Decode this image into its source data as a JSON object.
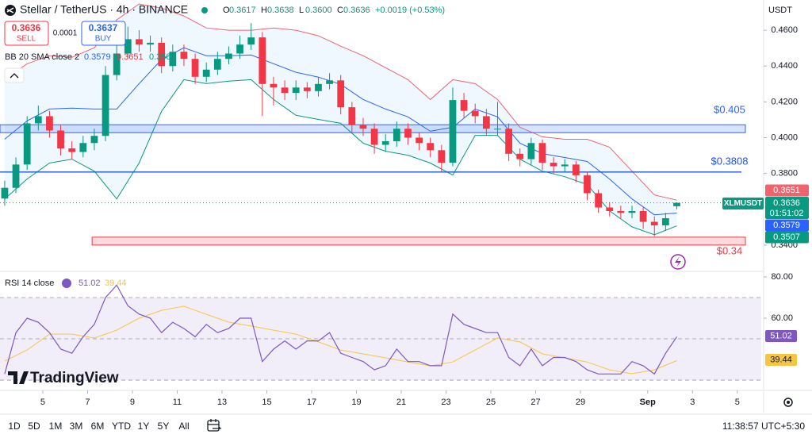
{
  "header": {
    "title": "Stellar / TetherUS · 4h · BINANCE",
    "ohlc": [
      {
        "key": "O",
        "value": "0.3617"
      },
      {
        "key": "H",
        "value": "0.3638"
      },
      {
        "key": "L",
        "value": "0.3600"
      },
      {
        "key": "C",
        "value": "0.3636"
      }
    ],
    "change": "+0.0019 (+0.53%)",
    "sell": {
      "price": "0.3636",
      "label": "SELL"
    },
    "spread": "0.0001",
    "buy": {
      "price": "0.3637",
      "label": "BUY"
    },
    "currency": "USDT"
  },
  "chart_data": {
    "type": "candlestick",
    "symbol_badge": "XLMUSDT",
    "countdown": "01:51:02",
    "up_color": "#089981",
    "down_color": "#f23645",
    "xlim": [
      3.09,
      37.07
    ],
    "xticks": [
      5,
      7,
      9,
      11,
      13,
      15,
      17,
      19,
      21,
      23,
      25,
      27,
      29,
      {
        "value": 32,
        "label": "Sep"
      },
      {
        "value": 34,
        "label": "3"
      },
      {
        "value": 36,
        "label": "5"
      }
    ],
    "ylim": [
      0.3262,
      0.4769
    ],
    "yticks": [
      {
        "value": 0.46,
        "label": "0.4600"
      },
      {
        "value": 0.44,
        "label": "0.4400"
      },
      {
        "value": 0.42,
        "label": "0.4200"
      },
      {
        "value": 0.4,
        "label": "0.4000"
      },
      {
        "value": 0.38,
        "label": "0.3800"
      },
      {
        "value": 0.34,
        "label": "0.3400"
      }
    ],
    "grid": false,
    "x": [
      3.3,
      3.8,
      4.3,
      4.8,
      5.3,
      5.8,
      6.3,
      6.8,
      7.3,
      7.8,
      8.3,
      8.8,
      9.3,
      9.8,
      10.3,
      10.8,
      11.3,
      11.8,
      12.3,
      12.8,
      13.3,
      13.8,
      14.3,
      14.8,
      15.3,
      15.8,
      16.3,
      16.8,
      17.3,
      17.8,
      18.3,
      18.8,
      19.3,
      19.8,
      20.3,
      20.8,
      21.3,
      21.8,
      22.3,
      22.8,
      23.3,
      23.8,
      24.3,
      24.8,
      25.3,
      25.8,
      26.3,
      26.8,
      27.3,
      27.8,
      28.3,
      28.8,
      29.3,
      29.8,
      30.3,
      30.8,
      31.3,
      31.8,
      32.3,
      32.8,
      33.3
    ],
    "open": [
      0.366,
      0.372,
      0.385,
      0.408,
      0.412,
      0.404,
      0.394,
      0.392,
      0.397,
      0.401,
      0.435,
      0.447,
      0.455,
      0.452,
      0.453,
      0.44,
      0.448,
      0.444,
      0.434,
      0.438,
      0.444,
      0.447,
      0.452,
      0.456,
      0.43,
      0.428,
      0.425,
      0.428,
      0.426,
      0.43,
      0.432,
      0.417,
      0.407,
      0.405,
      0.396,
      0.398,
      0.405,
      0.4,
      0.397,
      0.393,
      0.386,
      0.421,
      0.415,
      0.412,
      0.405,
      0.405,
      0.391,
      0.388,
      0.397,
      0.386,
      0.384,
      0.385,
      0.379,
      0.369,
      0.361,
      0.359,
      0.358,
      0.359,
      0.353,
      0.351,
      0.3617
    ],
    "high": [
      0.376,
      0.389,
      0.412,
      0.418,
      0.415,
      0.407,
      0.398,
      0.401,
      0.405,
      0.44,
      0.452,
      0.462,
      0.46,
      0.457,
      0.456,
      0.452,
      0.452,
      0.447,
      0.442,
      0.448,
      0.451,
      0.457,
      0.464,
      0.459,
      0.434,
      0.432,
      0.432,
      0.431,
      0.434,
      0.436,
      0.435,
      0.42,
      0.411,
      0.408,
      0.402,
      0.409,
      0.408,
      0.403,
      0.4,
      0.396,
      0.428,
      0.425,
      0.419,
      0.416,
      0.42,
      0.408,
      0.394,
      0.4,
      0.399,
      0.389,
      0.388,
      0.387,
      0.381,
      0.371,
      0.364,
      0.362,
      0.362,
      0.361,
      0.356,
      0.358,
      0.3638
    ],
    "low": [
      0.362,
      0.369,
      0.382,
      0.404,
      0.4,
      0.39,
      0.388,
      0.389,
      0.393,
      0.398,
      0.432,
      0.444,
      0.448,
      0.448,
      0.436,
      0.437,
      0.44,
      0.43,
      0.431,
      0.435,
      0.441,
      0.444,
      0.449,
      0.412,
      0.418,
      0.421,
      0.421,
      0.422,
      0.423,
      0.427,
      0.413,
      0.403,
      0.401,
      0.391,
      0.392,
      0.395,
      0.396,
      0.393,
      0.389,
      0.381,
      0.384,
      0.411,
      0.408,
      0.401,
      0.401,
      0.387,
      0.384,
      0.385,
      0.382,
      0.38,
      0.381,
      0.375,
      0.365,
      0.358,
      0.356,
      0.355,
      0.355,
      0.349,
      0.345,
      0.348,
      0.36
    ],
    "close": [
      0.372,
      0.385,
      0.408,
      0.412,
      0.404,
      0.394,
      0.392,
      0.397,
      0.401,
      0.435,
      0.447,
      0.455,
      0.452,
      0.453,
      0.44,
      0.448,
      0.444,
      0.434,
      0.438,
      0.444,
      0.447,
      0.452,
      0.456,
      0.43,
      0.428,
      0.425,
      0.428,
      0.426,
      0.43,
      0.432,
      0.417,
      0.407,
      0.405,
      0.396,
      0.398,
      0.405,
      0.4,
      0.397,
      0.393,
      0.386,
      0.421,
      0.415,
      0.412,
      0.405,
      0.405,
      0.391,
      0.388,
      0.397,
      0.386,
      0.384,
      0.385,
      0.379,
      0.369,
      0.361,
      0.359,
      0.358,
      0.359,
      0.353,
      0.351,
      0.355,
      0.3636
    ],
    "x_daily": [
      3.3,
      4.3,
      5.3,
      6.3,
      7.3,
      8.3,
      9.3,
      10.3,
      11.3,
      12.3,
      13.3,
      14.3,
      15.3,
      16.3,
      17.3,
      18.3,
      19.3,
      20.3,
      21.3,
      22.3,
      23.3,
      24.3,
      25.3,
      26.3,
      27.3,
      28.3,
      29.3,
      30.3,
      31.3,
      32.3,
      33.3
    ],
    "bollinger": {
      "label": "BB 20 SMA close 2",
      "upper_color": "#f0626e",
      "middle_color": "#2962ff",
      "lower_color": "#089981",
      "fill": "#2196f3",
      "upper": [
        0.4325,
        0.4413,
        0.4458,
        0.4449,
        0.4502,
        0.4658,
        0.4747,
        0.4724,
        0.468,
        0.4613,
        0.46,
        0.46,
        0.4613,
        0.46,
        0.4569,
        0.4511,
        0.4458,
        0.4391,
        0.4324,
        0.4213,
        0.4324,
        0.4302,
        0.4213,
        0.4058,
        0.4005,
        0.3991,
        0.3991,
        0.3947,
        0.3813,
        0.368,
        0.3651
      ],
      "middle": [
        0.3991,
        0.4094,
        0.416,
        0.4165,
        0.416,
        0.416,
        0.4302,
        0.4436,
        0.4502,
        0.4458,
        0.4458,
        0.4462,
        0.4413,
        0.4365,
        0.4338,
        0.4298,
        0.4213,
        0.416,
        0.4116,
        0.4036,
        0.4058,
        0.416,
        0.4116,
        0.3969,
        0.3911,
        0.3889,
        0.3867,
        0.3769,
        0.3658,
        0.3569,
        0.3579
      ],
      "lower": [
        0.3658,
        0.3769,
        0.3858,
        0.388,
        0.3813,
        0.3658,
        0.3858,
        0.4147,
        0.4324,
        0.4302,
        0.4316,
        0.4324,
        0.4213,
        0.4125,
        0.4102,
        0.408,
        0.3969,
        0.3924,
        0.3902,
        0.3858,
        0.3791,
        0.4013,
        0.4013,
        0.388,
        0.3813,
        0.3782,
        0.3738,
        0.3591,
        0.3502,
        0.3458,
        0.3507
      ]
    },
    "levels": [
      {
        "label": "$0.405",
        "value": 0.405,
        "kind": "zone",
        "color": "#2962ff",
        "from": 3.09
      },
      {
        "label": "$0.3808",
        "value": 0.3808,
        "kind": "line",
        "color": "#1e53e5",
        "from": 3.09
      },
      {
        "label": "$0.34",
        "value": 0.34,
        "kind": "zone",
        "color": "#f23645",
        "from": 7.2
      }
    ],
    "rsi": {
      "label": "RSI 14 close",
      "color": "#7e57c2",
      "ma_color": "#f7c544",
      "ylim": [
        25.8,
        82.3
      ],
      "yticks": [
        {
          "value": 80,
          "label": "80.00"
        },
        {
          "value": 60,
          "label": "60.00"
        }
      ],
      "bands": [
        70,
        50,
        30
      ],
      "values": [
        33,
        53,
        60,
        58,
        53,
        45,
        43,
        51,
        57,
        70,
        76,
        66,
        62,
        60,
        53,
        58,
        55,
        51,
        57,
        53,
        55,
        60,
        60,
        39,
        45,
        49,
        45,
        49,
        49,
        53,
        43,
        41,
        39,
        35,
        37,
        45,
        39,
        39,
        37,
        37,
        62,
        57,
        55,
        53,
        53,
        41,
        37,
        45,
        37,
        41,
        41,
        39,
        35,
        33,
        33,
        33,
        39,
        37,
        33,
        43,
        51.02
      ],
      "ma": [
        39.2,
        44.6,
        52.3,
        52.3,
        50.4,
        54.2,
        60,
        63.8,
        65.8,
        61.9,
        58.1,
        56.2,
        54.2,
        52.3,
        48.5,
        44.6,
        42.7,
        40.8,
        38.8,
        36.9,
        38.8,
        44.6,
        50.4,
        48.5,
        42.7,
        40.8,
        38.8,
        35,
        33.1,
        35,
        39.44
      ]
    }
  },
  "brand": "TradingView",
  "timeframes": [
    "1D",
    "5D",
    "1M",
    "3M",
    "6M",
    "YTD",
    "1Y",
    "5Y",
    "All"
  ],
  "clock": "11:38:57 UTC+5:30"
}
